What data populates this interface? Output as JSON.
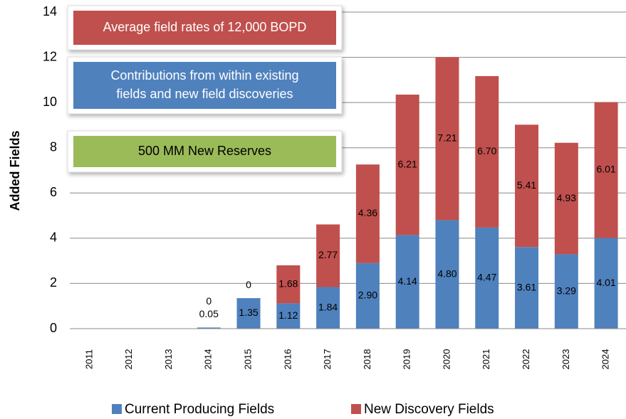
{
  "chart_data": {
    "type": "bar",
    "stacked": true,
    "y_label": "Added Fields",
    "categories": [
      "2011",
      "2012",
      "2013",
      "2014",
      "2015",
      "2016",
      "2017",
      "2018",
      "2019",
      "2020",
      "2021",
      "2022",
      "2023",
      "2024"
    ],
    "series": [
      {
        "name": "Current Producing Fields",
        "color": "#4f81bd",
        "values": [
          null,
          null,
          null,
          0.05,
          1.35,
          1.12,
          1.84,
          2.9,
          4.14,
          4.8,
          4.47,
          3.61,
          3.29,
          4.01
        ],
        "value_labels": [
          null,
          null,
          null,
          "0.05",
          "1.35",
          "1.12",
          "1.84",
          "2.90",
          "4.14",
          "4.80",
          "4.47",
          "3.61",
          "3.29",
          "4.01"
        ]
      },
      {
        "name": "New Discovery Fields",
        "color": "#c0504d",
        "values": [
          null,
          null,
          null,
          0,
          0,
          1.68,
          2.77,
          4.36,
          6.21,
          7.21,
          6.7,
          5.41,
          4.93,
          6.01
        ],
        "value_labels": [
          null,
          null,
          null,
          "0",
          "0",
          "1.68",
          "2.77",
          "4.36",
          "6.21",
          "7.21",
          "6.70",
          "5.41",
          "4.93",
          "6.01"
        ]
      }
    ],
    "ylim": [
      0,
      14
    ],
    "yticks": [
      0,
      2,
      4,
      6,
      8,
      10,
      12,
      14
    ],
    "grid": true,
    "legend": "bottom",
    "annotations": [
      {
        "lines": [
          "Average field rates of 12,000 BOPD"
        ],
        "color": "#c0504d",
        "text_color": "#ffffff"
      },
      {
        "lines": [
          "Contributions from within existing",
          "fields and new field discoveries"
        ],
        "color": "#4f81bd",
        "text_color": "#ffffff"
      },
      {
        "lines": [
          "500 MM New Reserves"
        ],
        "color": "#9bbb59",
        "text_color": "#000000"
      }
    ]
  }
}
